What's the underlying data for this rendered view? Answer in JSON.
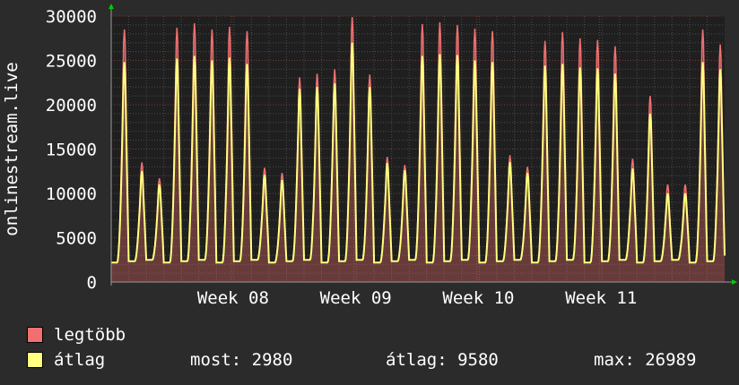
{
  "chart_data": {
    "type": "area",
    "ylabel": "onlinestream.live",
    "ylim": [
      0,
      30000
    ],
    "y_ticks": [
      "0",
      "5000",
      "10000",
      "15000",
      "20000",
      "25000",
      "30000"
    ],
    "x_ticks": [
      "Week 08",
      "Week 09",
      "Week 10",
      "Week 11"
    ],
    "grid": true,
    "x_unit": "day index (0 = start of plotted range)",
    "daily_peaks": {
      "x": [
        0,
        1,
        2,
        3,
        4,
        5,
        6,
        7,
        8,
        9,
        10,
        11,
        12,
        13,
        14,
        15,
        16,
        17,
        18,
        19,
        20,
        21,
        22,
        23,
        24,
        25,
        26,
        27,
        28,
        29,
        30,
        31,
        32,
        33,
        34
      ],
      "legtobb": [
        28500,
        13500,
        11700,
        28700,
        29200,
        28500,
        28800,
        28300,
        12900,
        12300,
        23100,
        23500,
        24000,
        29900,
        23400,
        14100,
        13200,
        29100,
        29300,
        29000,
        28600,
        28300,
        14300,
        13000,
        27200,
        28200,
        27500,
        27300,
        26600,
        13900,
        21000,
        11000,
        11000,
        28500,
        26800
      ],
      "atlag": [
        24800,
        12500,
        11000,
        25200,
        25500,
        25000,
        25300,
        24600,
        12100,
        11500,
        21800,
        22000,
        22400,
        27000,
        22000,
        13400,
        12600,
        25500,
        25700,
        25600,
        25000,
        24800,
        13500,
        12300,
        24400,
        24600,
        24200,
        24100,
        23500,
        12800,
        19000,
        10000,
        10000,
        24800,
        24000
      ]
    },
    "daily_min": 2200,
    "last_value": 2980,
    "series": [
      {
        "name": "legtöbb",
        "color": "#f07070"
      },
      {
        "name": "átlag",
        "color": "#ffff80"
      }
    ]
  },
  "legend": {
    "max_label": "legtöbb",
    "avg_label": "átlag",
    "max_color": "#f07070",
    "avg_color": "#ffff80",
    "most": "most: 2980",
    "atlag": "átlag: 9580",
    "max": "max: 26989"
  }
}
